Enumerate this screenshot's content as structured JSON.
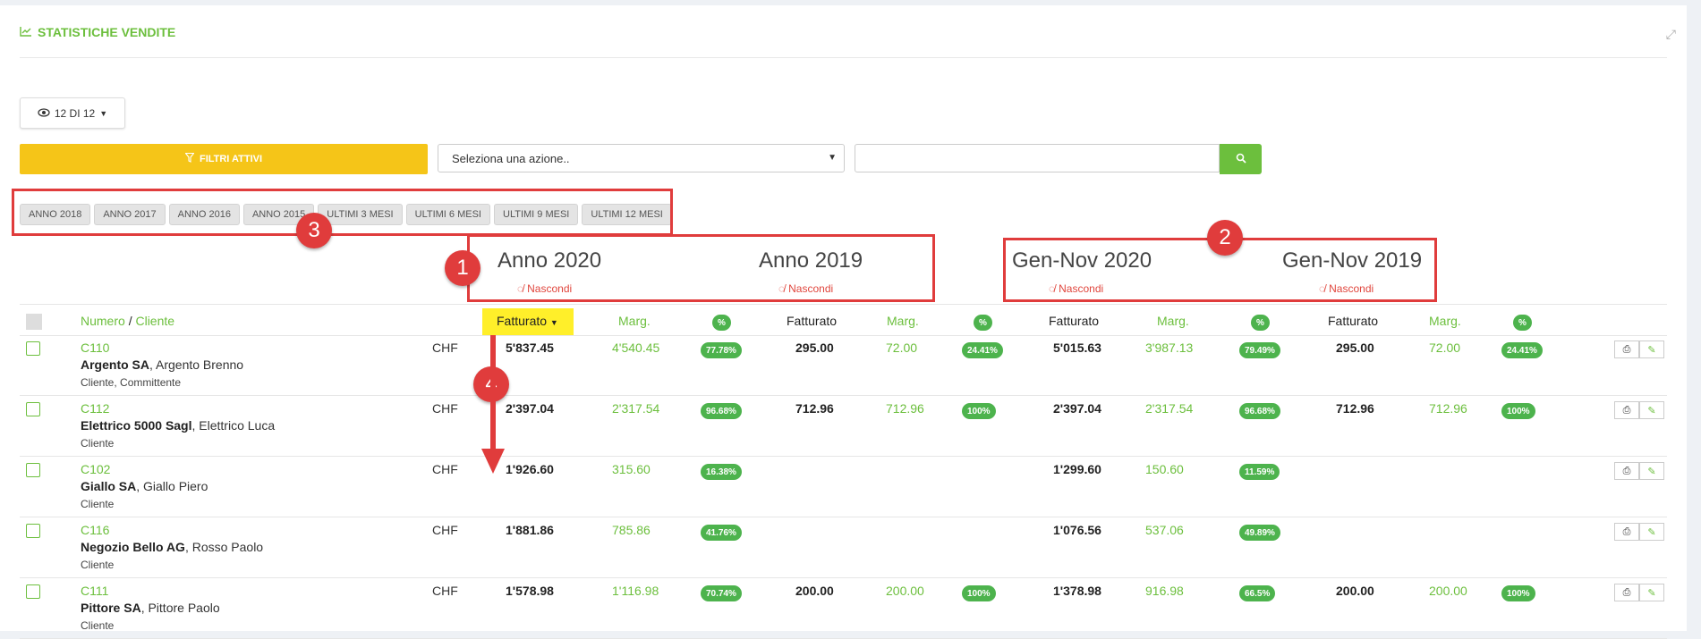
{
  "header": {
    "title": "STATISTICHE VENDITE"
  },
  "view_selector": {
    "label": "12 DI 12"
  },
  "filters_button": {
    "label": "FILTRI ATTIVI"
  },
  "action_select": {
    "placeholder": "Seleziona una azione.."
  },
  "periods": [
    "ANNO 2018",
    "ANNO 2017",
    "ANNO 2016",
    "ANNO 2015",
    "ULTIMI 3 MESI",
    "ULTIMI 6 MESI",
    "ULTIMI 9 MESI",
    "ULTIMI 12 MESI"
  ],
  "groups": [
    {
      "title": "Anno 2020",
      "hide": "Nascondi"
    },
    {
      "title": "Anno 2019",
      "hide": "Nascondi"
    },
    {
      "title": "Gen-Nov 2020",
      "hide": "Nascondi"
    },
    {
      "title": "Gen-Nov 2019",
      "hide": "Nascondi"
    }
  ],
  "callouts": [
    "1",
    "2",
    "3",
    "4"
  ],
  "columns": {
    "numero": "Numero",
    "sep": "/",
    "cliente": "Cliente",
    "fatturato": "Fatturato",
    "marg": "Marg.",
    "pct": "%"
  },
  "rows": [
    {
      "code": "C110",
      "name": "Argento SA",
      "contact": ", Argento Brenno",
      "type": "Cliente, Committente",
      "currency": "CHF",
      "a2020": [
        "5'837.45",
        "4'540.45",
        "77.78%"
      ],
      "a2019": [
        "295.00",
        "72.00",
        "24.41%"
      ],
      "g2020": [
        "5'015.63",
        "3'987.13",
        "79.49%"
      ],
      "g2019": [
        "295.00",
        "72.00",
        "24.41%"
      ]
    },
    {
      "code": "C112",
      "name": "Elettrico 5000 Sagl",
      "contact": ", Elettrico Luca",
      "type": "Cliente",
      "currency": "CHF",
      "a2020": [
        "2'397.04",
        "2'317.54",
        "96.68%"
      ],
      "a2019": [
        "712.96",
        "712.96",
        "100%"
      ],
      "g2020": [
        "2'397.04",
        "2'317.54",
        "96.68%"
      ],
      "g2019": [
        "712.96",
        "712.96",
        "100%"
      ]
    },
    {
      "code": "C102",
      "name": "Giallo SA",
      "contact": ", Giallo Piero",
      "type": "Cliente",
      "currency": "CHF",
      "a2020": [
        "1'926.60",
        "315.60",
        "16.38%"
      ],
      "a2019": [
        "",
        "",
        ""
      ],
      "g2020": [
        "1'299.60",
        "150.60",
        "11.59%"
      ],
      "g2019": [
        "",
        "",
        ""
      ]
    },
    {
      "code": "C116",
      "name": "Negozio Bello AG",
      "contact": ", Rosso Paolo",
      "type": "Cliente",
      "currency": "CHF",
      "a2020": [
        "1'881.86",
        "785.86",
        "41.76%"
      ],
      "a2019": [
        "",
        "",
        ""
      ],
      "g2020": [
        "1'076.56",
        "537.06",
        "49.89%"
      ],
      "g2019": [
        "",
        "",
        ""
      ]
    },
    {
      "code": "C111",
      "name": "Pittore SA",
      "contact": ", Pittore Paolo",
      "type": "Cliente",
      "currency": "CHF",
      "a2020": [
        "1'578.98",
        "1'116.98",
        "70.74%"
      ],
      "a2019": [
        "200.00",
        "200.00",
        "100%"
      ],
      "g2020": [
        "1'378.98",
        "916.98",
        "66.5%"
      ],
      "g2019": [
        "200.00",
        "200.00",
        "100%"
      ]
    }
  ]
}
